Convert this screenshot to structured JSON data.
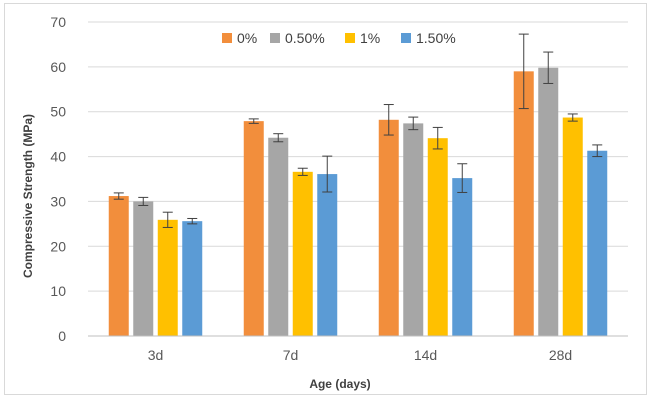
{
  "chart_data": {
    "type": "bar",
    "title": "",
    "xlabel": "Age (days)",
    "ylabel": "Compressive Strength (MPa)",
    "ylim": [
      0,
      70
    ],
    "y_ticks": [
      0,
      10,
      20,
      30,
      40,
      50,
      60,
      70
    ],
    "categories": [
      "3d",
      "7d",
      "14d",
      "28d"
    ],
    "grid": true,
    "legend_position": "top",
    "series": [
      {
        "name": "0%",
        "color": "#F28E3C",
        "values": [
          31.2,
          47.9,
          48.2,
          59.0
        ],
        "errors": [
          0.7,
          0.5,
          3.4,
          8.3
        ]
      },
      {
        "name": "0.50%",
        "color": "#A6A6A6",
        "values": [
          30.0,
          44.2,
          47.4,
          59.8
        ],
        "errors": [
          0.9,
          0.9,
          1.4,
          3.5
        ]
      },
      {
        "name": "1%",
        "color": "#FFC000",
        "values": [
          25.9,
          36.6,
          44.1,
          48.7
        ],
        "errors": [
          1.7,
          0.8,
          2.4,
          0.8
        ]
      },
      {
        "name": "1.50%",
        "color": "#5B9BD5",
        "values": [
          25.6,
          36.1,
          35.2,
          41.3
        ],
        "errors": [
          0.6,
          4.0,
          3.2,
          1.3
        ]
      }
    ]
  }
}
